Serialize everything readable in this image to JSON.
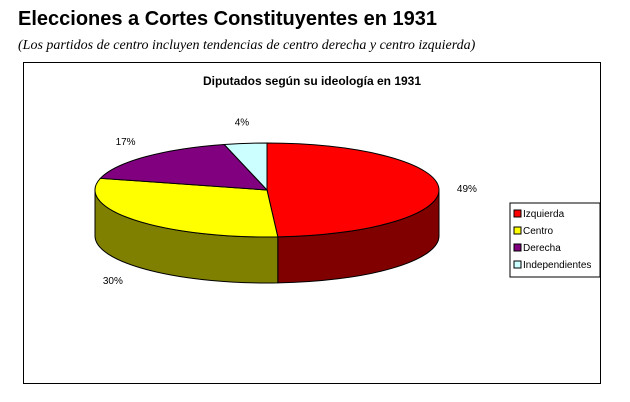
{
  "header": {
    "title": "Elecciones a Cortes Constituyentes en 1931",
    "subtitle": "(Los partidos de centro incluyen tendencias de centro derecha y centro izquierda)"
  },
  "chart_data": {
    "type": "pie",
    "title": "Diputados según su ideología en 1931",
    "categories": [
      "Izquierda",
      "Centro",
      "Derecha",
      "Independientes"
    ],
    "values": [
      49,
      30,
      17,
      4
    ],
    "labels": [
      "49%",
      "30%",
      "17%",
      "4%"
    ],
    "colors": [
      "#ff0000",
      "#ffff00",
      "#800080",
      "#ccffff"
    ],
    "side_colors": [
      "#800000",
      "#808000",
      "#400040",
      "#668080"
    ],
    "legend_position": "right",
    "three_d": true
  }
}
